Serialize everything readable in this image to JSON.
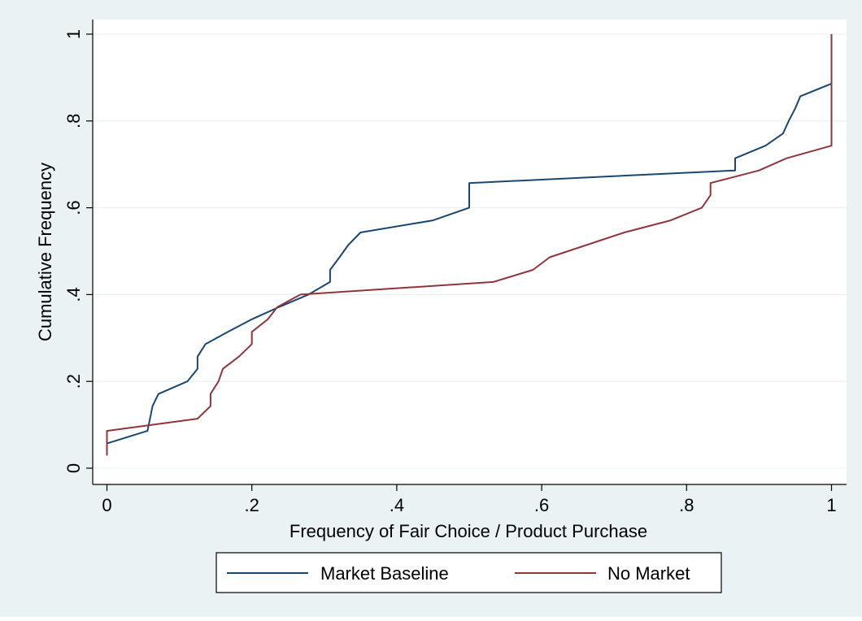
{
  "chart_data": {
    "type": "line",
    "title": "",
    "xlabel": "Frequency of Fair Choice / Product Purchase",
    "ylabel": "Cumulative Frequency",
    "xlim": [
      0,
      1
    ],
    "ylim": [
      0,
      1
    ],
    "x_ticks": [
      "0",
      ".2",
      ".4",
      ".6",
      ".8",
      "1"
    ],
    "y_ticks": [
      "0",
      ".2",
      ".4",
      ".6",
      ".8",
      "1"
    ],
    "x_tick_values": [
      0,
      0.2,
      0.4,
      0.6,
      0.8,
      1
    ],
    "y_tick_values": [
      0,
      0.2,
      0.4,
      0.6,
      0.8,
      1
    ],
    "grid": true,
    "legend_position": "bottom",
    "colors": {
      "background": "#eaf2f3",
      "plot_background": "#ffffff",
      "grid": "#eaf2f3",
      "axis": "#000000"
    },
    "series": [
      {
        "name": "Market Baseline",
        "color": "#1a476f",
        "points": [
          [
            0.0,
            0.029
          ],
          [
            0.0,
            0.057
          ],
          [
            0.056,
            0.086
          ],
          [
            0.063,
            0.143
          ],
          [
            0.071,
            0.171
          ],
          [
            0.111,
            0.2
          ],
          [
            0.125,
            0.229
          ],
          [
            0.125,
            0.257
          ],
          [
            0.136,
            0.286
          ],
          [
            0.167,
            0.314
          ],
          [
            0.2,
            0.343
          ],
          [
            0.237,
            0.371
          ],
          [
            0.278,
            0.4
          ],
          [
            0.308,
            0.429
          ],
          [
            0.308,
            0.457
          ],
          [
            0.321,
            0.486
          ],
          [
            0.333,
            0.514
          ],
          [
            0.35,
            0.543
          ],
          [
            0.45,
            0.571
          ],
          [
            0.5,
            0.6
          ],
          [
            0.5,
            0.657
          ],
          [
            0.867,
            0.686
          ],
          [
            0.867,
            0.714
          ],
          [
            0.909,
            0.743
          ],
          [
            0.933,
            0.771
          ],
          [
            0.941,
            0.8
          ],
          [
            0.95,
            0.829
          ],
          [
            0.957,
            0.857
          ],
          [
            1.0,
            0.886
          ]
        ]
      },
      {
        "name": "No Market",
        "color": "#90353b",
        "points": [
          [
            0.0,
            0.029
          ],
          [
            0.0,
            0.086
          ],
          [
            0.125,
            0.114
          ],
          [
            0.143,
            0.143
          ],
          [
            0.143,
            0.171
          ],
          [
            0.154,
            0.2
          ],
          [
            0.16,
            0.229
          ],
          [
            0.182,
            0.257
          ],
          [
            0.2,
            0.286
          ],
          [
            0.2,
            0.314
          ],
          [
            0.222,
            0.343
          ],
          [
            0.235,
            0.371
          ],
          [
            0.267,
            0.4
          ],
          [
            0.533,
            0.429
          ],
          [
            0.588,
            0.457
          ],
          [
            0.611,
            0.486
          ],
          [
            0.714,
            0.543
          ],
          [
            0.778,
            0.571
          ],
          [
            0.821,
            0.6
          ],
          [
            0.833,
            0.629
          ],
          [
            0.833,
            0.657
          ],
          [
            0.9,
            0.686
          ],
          [
            0.938,
            0.714
          ],
          [
            1.0,
            0.743
          ],
          [
            1.0,
            1.0
          ]
        ]
      }
    ]
  }
}
